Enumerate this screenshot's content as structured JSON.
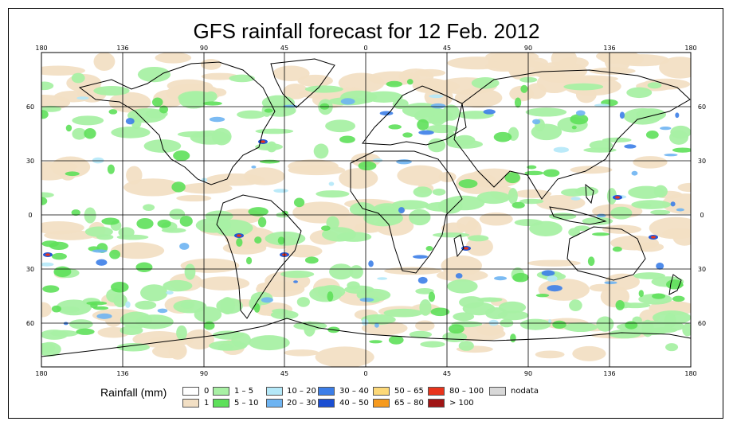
{
  "title": "GFS rainfall forecast for 12 Feb. 2012",
  "map": {
    "longitude_labels": [
      "180",
      "136",
      "90",
      "45",
      "0",
      "45",
      "90",
      "136",
      "180"
    ],
    "latitude_labels": [
      "60",
      "30",
      "0",
      "30",
      "60"
    ]
  },
  "legend": {
    "title": "Rainfall (mm)",
    "items": [
      {
        "label": "0",
        "color": "#ffffff"
      },
      {
        "label": "1",
        "color": "#f2dfc4"
      },
      {
        "label": "1 – 5",
        "color": "#a8f0a4"
      },
      {
        "label": "5 – 10",
        "color": "#5ee05a"
      },
      {
        "label": "10 – 20",
        "color": "#b4e8f8"
      },
      {
        "label": "20 – 30",
        "color": "#6eb4f2"
      },
      {
        "label": "30 – 40",
        "color": "#3c7ee8"
      },
      {
        "label": "40 – 50",
        "color": "#1a4ed2"
      },
      {
        "label": "50 – 65",
        "color": "#fcd878"
      },
      {
        "label": "65 – 80",
        "color": "#f69a1e"
      },
      {
        "label": "80 – 100",
        "color": "#e8341c"
      },
      {
        "label": "> 100",
        "color": "#a01414"
      },
      {
        "label": "nodata",
        "color": "#d8d8d8"
      }
    ]
  }
}
